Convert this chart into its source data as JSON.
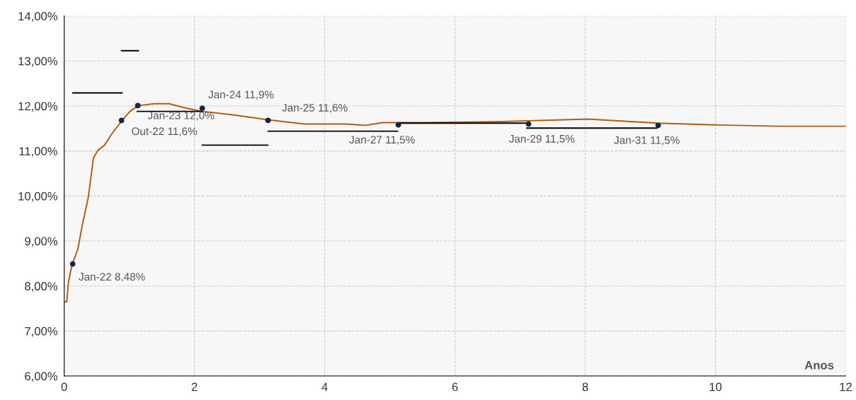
{
  "chart_data": {
    "type": "line",
    "xlabel": "Anos",
    "xlim": [
      0,
      12
    ],
    "xticks": [
      0,
      2,
      4,
      6,
      8,
      10,
      12
    ],
    "ylim": [
      6,
      14
    ],
    "yticks": [
      {
        "value": 6,
        "label": "6,00%"
      },
      {
        "value": 7,
        "label": "7,00%"
      },
      {
        "value": 8,
        "label": "8,00%"
      },
      {
        "value": 9,
        "label": "9,00%"
      },
      {
        "value": 10,
        "label": "10,00%"
      },
      {
        "value": 11,
        "label": "11,00%"
      },
      {
        "value": 12,
        "label": "12,00%"
      },
      {
        "value": 13,
        "label": "13,00%"
      },
      {
        "value": 14,
        "label": "14,00%"
      }
    ],
    "grid": true,
    "legend": false,
    "series": [
      {
        "color": "#b35a0f",
        "marker": "none",
        "x": [
          0,
          0.04,
          0.065,
          0.11,
          0.13,
          0.21,
          0.28,
          0.37,
          0.45,
          0.52,
          0.62,
          0.73,
          0.89,
          1.01,
          1.14,
          1.39,
          1.61,
          1.85,
          2.12,
          2.61,
          3.15,
          3.69,
          4.34,
          4.62,
          4.89,
          5.54,
          6.62,
          8.04,
          9.12,
          10.0,
          10.97,
          12.0
        ],
        "values": [
          7.65,
          7.65,
          8.09,
          8.4,
          8.51,
          8.82,
          9.37,
          9.97,
          10.85,
          11.02,
          11.13,
          11.38,
          11.68,
          11.88,
          12.01,
          12.05,
          12.05,
          11.96,
          11.88,
          11.8,
          11.69,
          11.6,
          11.6,
          11.57,
          11.63,
          11.63,
          11.65,
          11.71,
          11.62,
          11.58,
          11.55,
          11.55
        ]
      },
      {
        "type": "line",
        "color": "#000000",
        "marker": "none",
        "x": [
          0.13,
          0.89
        ],
        "values": [
          12.29,
          12.29
        ]
      },
      {
        "type": "line",
        "color": "#000000",
        "marker": "none",
        "x": [
          0.88,
          1.14
        ],
        "values": [
          13.23,
          13.23
        ]
      },
      {
        "type": "line",
        "color": "#000000",
        "marker": "none",
        "x": [
          1.12,
          2.12
        ],
        "values": [
          11.88,
          11.88
        ]
      },
      {
        "type": "line",
        "color": "#000000",
        "marker": "none",
        "x": [
          2.12,
          3.13
        ],
        "values": [
          11.13,
          11.13
        ]
      },
      {
        "type": "line",
        "color": "#000000",
        "marker": "none",
        "x": [
          3.13,
          5.12
        ],
        "values": [
          11.44,
          11.44
        ]
      },
      {
        "type": "line",
        "color": "#000000",
        "marker": "none",
        "x": [
          5.12,
          7.1
        ],
        "values": [
          11.62,
          11.62
        ]
      },
      {
        "type": "line",
        "color": "#000000",
        "marker": "none",
        "x": [
          7.1,
          9.1
        ],
        "values": [
          11.51,
          11.51
        ]
      },
      {
        "type": "scatter",
        "color": "#14284b",
        "marker": "circle",
        "x": [
          0.13,
          0.88,
          1.13,
          2.12,
          3.13,
          5.13,
          7.13,
          9.12
        ],
        "values": [
          8.49,
          11.68,
          12.01,
          11.95,
          11.68,
          11.58,
          11.6,
          11.57
        ]
      }
    ],
    "annotations": [
      {
        "text": "Jan-22 8,48%",
        "x": 0.13,
        "y": 8.49
      },
      {
        "text": "Out-22 11,6%",
        "x": 0.88,
        "y": 11.68
      },
      {
        "text": "Jan-23 12,0%",
        "x": 1.13,
        "y": 12.01
      },
      {
        "text": "Jan-24 11,9%",
        "x": 2.12,
        "y": 11.95
      },
      {
        "text": "Jan-25 11,6%",
        "x": 3.13,
        "y": 11.68
      },
      {
        "text": "Jan-27 11,5%",
        "x": 5.13,
        "y": 11.58
      },
      {
        "text": "Jan-29 11,5%",
        "x": 7.13,
        "y": 11.6
      },
      {
        "text": "Jan-31 11,5%",
        "x": 9.12,
        "y": 11.57
      }
    ]
  }
}
